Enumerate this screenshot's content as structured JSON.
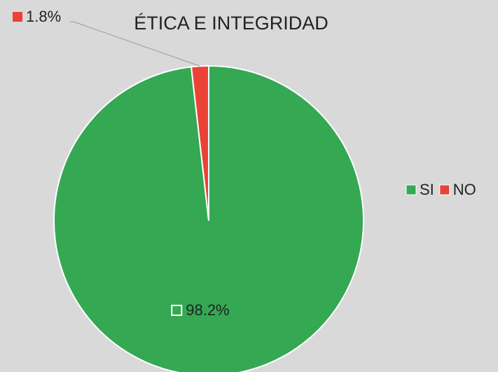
{
  "chart_data": {
    "type": "pie",
    "title": "ÉTICA E INTEGRIDAD",
    "categories": [
      "SI",
      "NO"
    ],
    "values": [
      98.2,
      1.8
    ],
    "value_labels": [
      "98.2%",
      "1.8%"
    ],
    "colors": [
      "#34a853",
      "#ea4335"
    ],
    "legend": "right"
  }
}
